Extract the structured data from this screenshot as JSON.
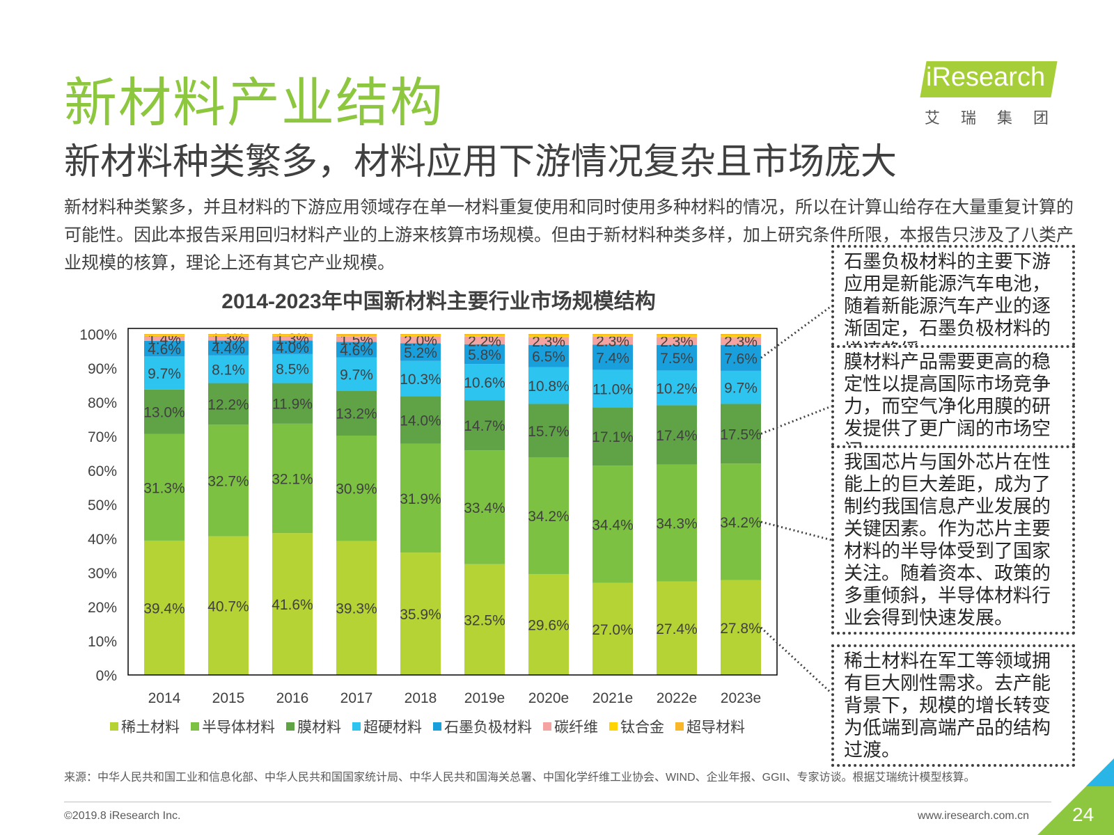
{
  "title": "新材料产业结构",
  "subtitle": "新材料种类繁多，材料应用下游情况复杂且市场庞大",
  "logo": {
    "text": "iResearch",
    "sub": "艾瑞集团"
  },
  "paragraph": "新材料种类繁多，并且材料的下游应用领域存在单一材料重复使用和同时使用多种材料的情况，所以在计算山给存在大量重复计算的可能性。因此本报告采用回归材料产业的上游来核算市场规模。但由于新材料种类多样，加上研究条件所限，本报告只涉及了八类产业规模的核算，理论上还有其它产业规模。",
  "chart_data": {
    "type": "bar",
    "stacked": true,
    "title": "2014-2023年中国新材料主要行业市场规模结构",
    "categories": [
      "2014",
      "2015",
      "2016",
      "2017",
      "2018",
      "2019e",
      "2020e",
      "2021e",
      "2022e",
      "2023e"
    ],
    "yticks": [
      "0%",
      "10%",
      "20%",
      "30%",
      "40%",
      "50%",
      "60%",
      "70%",
      "80%",
      "90%",
      "100%"
    ],
    "ylim": [
      0,
      100
    ],
    "legend_position": "bottom",
    "series": [
      {
        "name": "稀土材料",
        "color": "#b5d334",
        "values": [
          39.4,
          40.7,
          41.6,
          39.3,
          35.9,
          32.5,
          29.6,
          27.0,
          27.4,
          27.8
        ],
        "labels": [
          "39.4%",
          "40.7%",
          "41.6%",
          "39.3%",
          "35.9%",
          "32.5%",
          "29.6%",
          "27.0%",
          "27.4%",
          "27.8%"
        ]
      },
      {
        "name": "半导体材料",
        "color": "#7cc142",
        "values": [
          31.3,
          32.7,
          32.1,
          30.9,
          31.9,
          33.4,
          34.2,
          34.4,
          34.3,
          34.2
        ],
        "labels": [
          "31.3%",
          "32.7%",
          "32.1%",
          "30.9%",
          "31.9%",
          "33.4%",
          "34.2%",
          "34.4%",
          "34.3%",
          "34.2%"
        ]
      },
      {
        "name": "膜材料",
        "color": "#5fa346",
        "values": [
          13.0,
          12.2,
          11.9,
          13.2,
          14.0,
          14.7,
          15.7,
          17.1,
          17.4,
          17.5
        ],
        "labels": [
          "13.0%",
          "12.2%",
          "11.9%",
          "13.2%",
          "14.0%",
          "14.7%",
          "15.7%",
          "17.1%",
          "17.4%",
          "17.5%"
        ]
      },
      {
        "name": "超硬材料",
        "color": "#2ec4f0",
        "values": [
          9.7,
          8.1,
          8.5,
          9.7,
          10.3,
          10.6,
          10.8,
          11.0,
          10.2,
          9.7
        ],
        "labels": [
          "9.7%",
          "8.1%",
          "8.5%",
          "9.7%",
          "10.3%",
          "10.6%",
          "10.8%",
          "11.0%",
          "10.2%",
          "9.7%"
        ]
      },
      {
        "name": "石墨负极材料",
        "color": "#1a9fdd",
        "values": [
          4.6,
          4.4,
          4.0,
          4.6,
          5.2,
          5.8,
          6.5,
          7.4,
          7.5,
          7.6
        ],
        "labels": [
          "4.6%",
          "4.4%",
          "4.0%",
          "4.6%",
          "5.2%",
          "5.8%",
          "6.5%",
          "7.4%",
          "7.5%",
          "7.6%"
        ]
      },
      {
        "name": "碳纤维",
        "color": "#f4a3a0",
        "values": [
          1.4,
          1.3,
          1.3,
          1.5,
          2.0,
          2.2,
          2.3,
          2.3,
          2.3,
          2.3
        ],
        "labels": [
          "1.4%",
          "1.3%",
          "1.3%",
          "1.5%",
          "2.0%",
          "2.2%",
          "2.3%",
          "2.3%",
          "2.3%",
          "2.3%"
        ]
      },
      {
        "name": "钛合金",
        "color": "#ffd400",
        "values": [
          0.3,
          0.3,
          0.3,
          0.3,
          0.4,
          0.4,
          0.5,
          0.5,
          0.5,
          0.5
        ],
        "labels": []
      },
      {
        "name": "超导材料",
        "color": "#f8b62b",
        "values": [
          0.3,
          0.3,
          0.3,
          0.5,
          0.3,
          0.4,
          0.4,
          0.3,
          0.4,
          0.4
        ],
        "labels": []
      }
    ]
  },
  "callouts": [
    {
      "text": "石墨负极材料的主要下游应用是新能源汽车电池，随着新能源汽车产业的逐渐固定，石墨负极材料的增速趋缓。"
    },
    {
      "text": "膜材料产品需要更高的稳定性以提高国际市场竞争力，而空气净化用膜的研发提供了更广阔的市场空间。"
    },
    {
      "text": "我国芯片与国外芯片在性能上的巨大差距，成为了制约我国信息产业发展的关键因素。作为芯片主要材料的半导体受到了国家关注。随着资本、政策的多重倾斜，半导体材料行业会得到快速发展。"
    },
    {
      "text": "稀土材料在军工等领域拥有巨大刚性需求。去产能背景下，规模的增长转变为低端到高端产品的结构过渡。"
    }
  ],
  "source": "来源：中华人民共和国工业和信息化部、中华人民共和国国家统计局、中华人民共和国海关总署、中国化学纤维工业协会、WIND、企业年报、GGII、专家访谈。根据艾瑞统计模型核算。",
  "copyright": "©2019.8 iResearch Inc.",
  "website": "www.iresearch.com.cn",
  "page_number": "24"
}
